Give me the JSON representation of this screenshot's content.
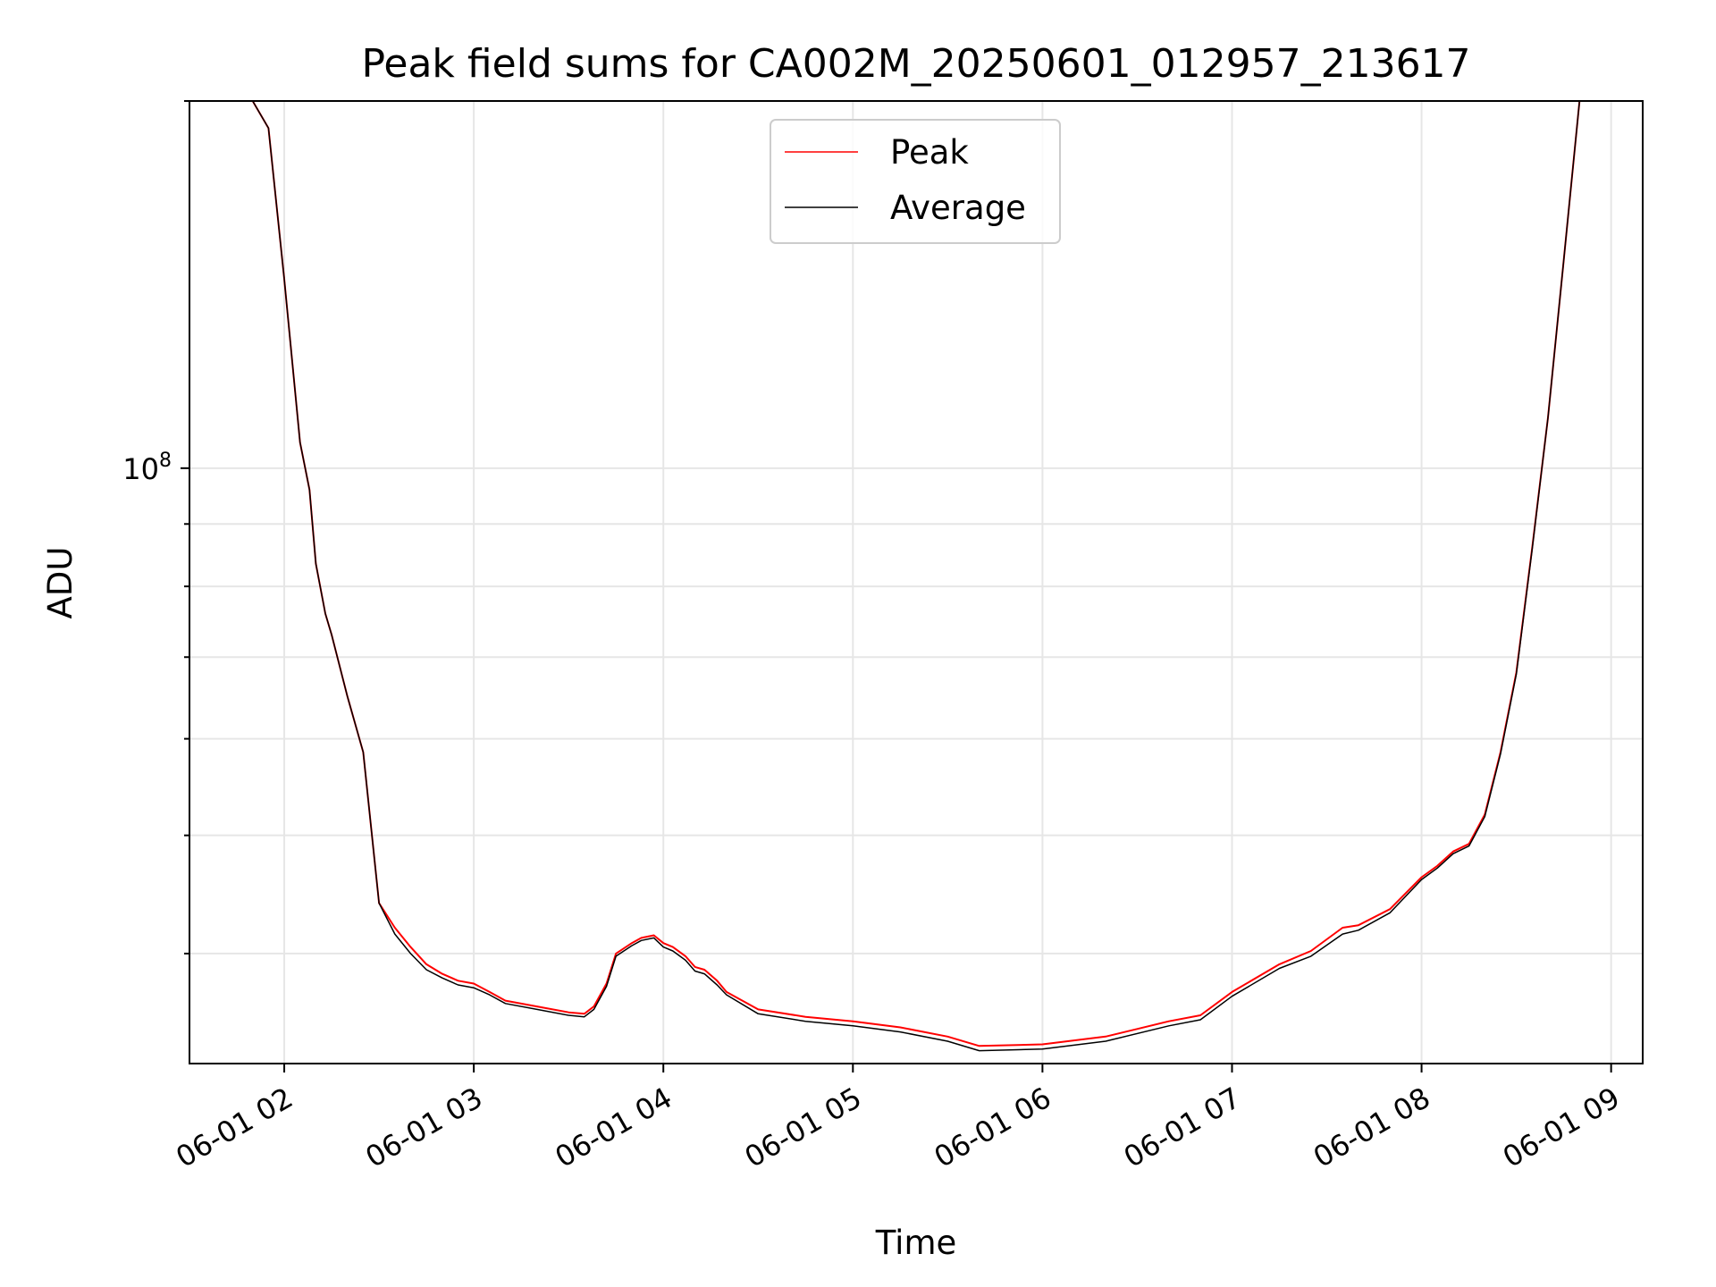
{
  "chart_data": {
    "type": "line",
    "title": "Peak field sums for CA002M_20250601_012957_213617",
    "xlabel": "Time",
    "ylabel": "ADU",
    "y_scale": "log",
    "grid": true,
    "legend_position": "upper center",
    "xlim": [
      "06-01 01:30",
      "06-01 09:10"
    ],
    "ylim": [
      32500000.0,
      200000000.0
    ],
    "x_ticks": [
      "06-01 02",
      "06-01 03",
      "06-01 04",
      "06-01 05",
      "06-01 06",
      "06-01 07",
      "06-01 08",
      "06-01 09"
    ],
    "y_tick_labels": [
      {
        "base": "10",
        "exp": "8",
        "value": 100000000.0
      }
    ],
    "y_minor_ticks": [
      40000000.0,
      50000000.0,
      60000000.0,
      70000000.0,
      80000000.0,
      90000000.0,
      200000000.0
    ],
    "colors": {
      "Peak": "#ff0000",
      "Average": "#000000"
    },
    "x": [
      "01:30",
      "01:50",
      "01:55",
      "02:00",
      "02:05",
      "02:08",
      "02:10",
      "02:13",
      "02:15",
      "02:20",
      "02:25",
      "02:30",
      "02:35",
      "02:40",
      "02:45",
      "02:50",
      "02:55",
      "03:00",
      "03:05",
      "03:10",
      "03:20",
      "03:30",
      "03:35",
      "03:38",
      "03:42",
      "03:45",
      "03:50",
      "03:53",
      "03:57",
      "04:00",
      "04:03",
      "04:07",
      "04:10",
      "04:13",
      "04:17",
      "04:20",
      "04:30",
      "04:45",
      "05:00",
      "05:15",
      "05:30",
      "05:40",
      "06:00",
      "06:20",
      "06:40",
      "06:50",
      "07:00",
      "07:15",
      "07:25",
      "07:35",
      "07:40",
      "07:50",
      "08:00",
      "08:05",
      "08:10",
      "08:15",
      "08:20",
      "08:25",
      "08:30",
      "08:35",
      "08:40",
      "08:45",
      "08:50",
      "09:00",
      "09:10"
    ],
    "series": [
      {
        "name": "Peak",
        "values": [
          200000000.0,
          200000000.0,
          190000000.0,
          143000000.0,
          105000000.0,
          96000000.0,
          83500000.0,
          76000000.0,
          73000000.0,
          65000000.0,
          58500000.0,
          44000000.0,
          42000000.0,
          40500000.0,
          39200000.0,
          38500000.0,
          38000000.0,
          37800000.0,
          37200000.0,
          36600000.0,
          36200000.0,
          35800000.0,
          35700000.0,
          36200000.0,
          37800000.0,
          40000000.0,
          40800000.0,
          41200000.0,
          41400000.0,
          40800000.0,
          40500000.0,
          39800000.0,
          39000000.0,
          38800000.0,
          38000000.0,
          37200000.0,
          36000000.0,
          35500000.0,
          35200000.0,
          34800000.0,
          34200000.0,
          33600000.0,
          33700000.0,
          34200000.0,
          35200000.0,
          35600000.0,
          37200000.0,
          39200000.0,
          40200000.0,
          42000000.0,
          42200000.0,
          43500000.0,
          46200000.0,
          47200000.0,
          48500000.0,
          49200000.0,
          52000000.0,
          58500000.0,
          68000000.0,
          86000000.0,
          110000000.0,
          148000000.0,
          200000000.0,
          200000000.0,
          200000000.0
        ]
      },
      {
        "name": "Average",
        "values": [
          200000000.0,
          200000000.0,
          190000000.0,
          143000000.0,
          105000000.0,
          96000000.0,
          83500000.0,
          76000000.0,
          73000000.0,
          65000000.0,
          58500000.0,
          44000000.0,
          41500000.0,
          40000000.0,
          38800000.0,
          38200000.0,
          37700000.0,
          37500000.0,
          37000000.0,
          36400000.0,
          36000000.0,
          35600000.0,
          35500000.0,
          36000000.0,
          37600000.0,
          39800000.0,
          40600000.0,
          41000000.0,
          41200000.0,
          40500000.0,
          40200000.0,
          39500000.0,
          38700000.0,
          38500000.0,
          37700000.0,
          37000000.0,
          35700000.0,
          35200000.0,
          34900000.0,
          34500000.0,
          33900000.0,
          33300000.0,
          33400000.0,
          33900000.0,
          34900000.0,
          35300000.0,
          36900000.0,
          38900000.0,
          39800000.0,
          41500000.0,
          41800000.0,
          43200000.0,
          46000000.0,
          47000000.0,
          48300000.0,
          49000000.0,
          51800000.0,
          58300000.0,
          67800000.0,
          85800000.0,
          110000000.0,
          148000000.0,
          200000000.0,
          200000000.0,
          200000000.0
        ]
      }
    ]
  }
}
